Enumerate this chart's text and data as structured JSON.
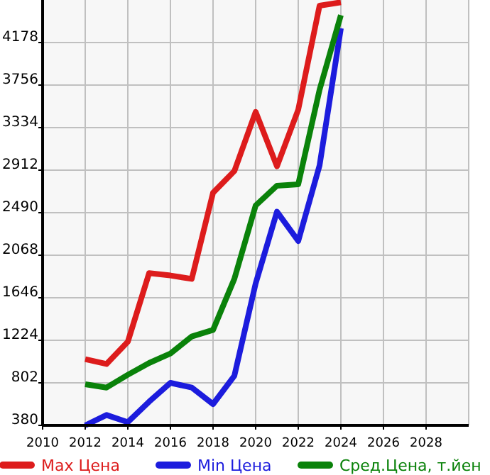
{
  "chart_data": {
    "type": "line",
    "x": [
      2012,
      2013,
      2014,
      2015,
      2016,
      2017,
      2018,
      2019,
      2020,
      2021,
      2022,
      2023,
      2024
    ],
    "series": [
      {
        "name": "Max Цена",
        "color": "#dd1c1c",
        "values": [
          1037,
          989,
          1210,
          1890,
          1867,
          1833,
          2688,
          2903,
          3490,
          2950,
          3513,
          4544,
          4577
        ]
      },
      {
        "name": "Min Цена",
        "color": "#1c1cdd",
        "values": [
          380,
          483,
          412,
          615,
          802,
          755,
          591,
          872,
          1787,
          2500,
          2209,
          2959,
          4320
        ]
      },
      {
        "name": "Сред.Цена, т.йен",
        "color": "#0a820a",
        "values": [
          788,
          755,
          882,
          999,
          1093,
          1262,
          1327,
          1833,
          2561,
          2758,
          2772,
          3710,
          4450
        ]
      }
    ],
    "xlim": [
      2010,
      2030
    ],
    "xticks": [
      2010,
      2012,
      2014,
      2016,
      2018,
      2020,
      2022,
      2024,
      2026,
      2028
    ],
    "ylim": [
      380,
      4600
    ],
    "yticks": [
      380,
      802,
      1224,
      1646,
      2068,
      2490,
      2912,
      3334,
      3756,
      4178
    ],
    "grid": true,
    "legend": "bottom",
    "marker": "none",
    "line_style": "solid"
  }
}
